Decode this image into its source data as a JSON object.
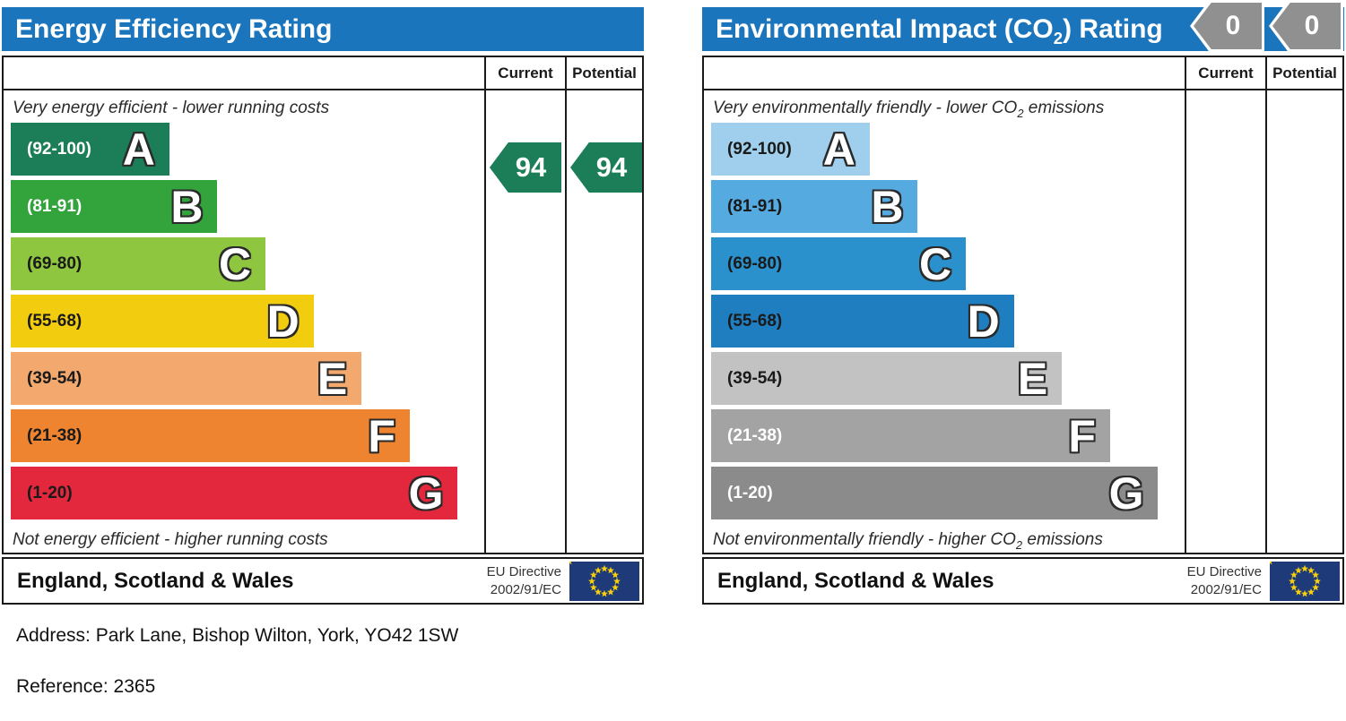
{
  "charts": [
    {
      "id": "energy",
      "title": {
        "pre": "Energy Efficiency Rating",
        "sub": "",
        "post": ""
      },
      "columns": {
        "current": "Current",
        "potential": "Potential"
      },
      "captions": {
        "top": {
          "pre": "Very energy efficient - lower running costs",
          "sub": "",
          "post": ""
        },
        "bottom": {
          "pre": "Not energy efficient - higher running costs",
          "sub": "",
          "post": ""
        }
      },
      "bands": [
        {
          "range": "(92-100)",
          "letter": "A",
          "color": "#1c7e58",
          "text_color": "#ffffff",
          "width_pct": 33
        },
        {
          "range": "(81-91)",
          "letter": "B",
          "color": "#33a43c",
          "text_color": "#ffffff",
          "width_pct": 43
        },
        {
          "range": "(69-80)",
          "letter": "C",
          "color": "#8ec63f",
          "text_color": "#1a1a1a",
          "width_pct": 53
        },
        {
          "range": "(55-68)",
          "letter": "D",
          "color": "#f2cc0f",
          "text_color": "#1a1a1a",
          "width_pct": 63
        },
        {
          "range": "(39-54)",
          "letter": "E",
          "color": "#f3a96e",
          "text_color": "#1a1a1a",
          "width_pct": 73
        },
        {
          "range": "(21-38)",
          "letter": "F",
          "color": "#ee8430",
          "text_color": "#1a1a1a",
          "width_pct": 83
        },
        {
          "range": "(1-20)",
          "letter": "G",
          "color": "#e3273d",
          "text_color": "#1a1a1a",
          "width_pct": 93
        }
      ],
      "ratings": {
        "current": "94",
        "potential": "94",
        "arrow_color": "#1c7e58",
        "placement": "band-a"
      },
      "footer": {
        "region": "England, Scotland & Wales",
        "directive1": "EU Directive",
        "directive2": "2002/91/EC"
      }
    },
    {
      "id": "environmental",
      "title": {
        "pre": "Environmental Impact (CO",
        "sub": "2",
        "post": ") Rating"
      },
      "columns": {
        "current": "Current",
        "potential": "Potential"
      },
      "captions": {
        "top": {
          "pre": "Very environmentally friendly - lower CO",
          "sub": "2",
          "post": " emissions"
        },
        "bottom": {
          "pre": "Not environmentally friendly - higher CO",
          "sub": "2",
          "post": " emissions"
        }
      },
      "bands": [
        {
          "range": "(92-100)",
          "letter": "A",
          "color": "#9fcfed",
          "text_color": "#1a1a1a",
          "width_pct": 33
        },
        {
          "range": "(81-91)",
          "letter": "B",
          "color": "#55aadf",
          "text_color": "#1a1a1a",
          "width_pct": 43
        },
        {
          "range": "(69-80)",
          "letter": "C",
          "color": "#2b91cc",
          "text_color": "#1a1a1a",
          "width_pct": 53
        },
        {
          "range": "(55-68)",
          "letter": "D",
          "color": "#1f7ec0",
          "text_color": "#1a1a1a",
          "width_pct": 63
        },
        {
          "range": "(39-54)",
          "letter": "E",
          "color": "#c2c2c2",
          "text_color": "#1a1a1a",
          "width_pct": 73
        },
        {
          "range": "(21-38)",
          "letter": "F",
          "color": "#a3a3a3",
          "text_color": "#ffffff",
          "width_pct": 83
        },
        {
          "range": "(1-20)",
          "letter": "G",
          "color": "#8b8b8b",
          "text_color": "#ffffff",
          "width_pct": 93
        }
      ],
      "ratings": {
        "current": "0",
        "potential": "0",
        "arrow_color": "#909090",
        "placement": "banner-overlay"
      },
      "footer": {
        "region": "England, Scotland & Wales",
        "directive1": "EU Directive",
        "directive2": "2002/91/EC"
      }
    }
  ],
  "notes": {
    "address": "Address: Park Lane, Bishop Wilton, York, YO42 1SW",
    "reference": "Reference: 2365"
  },
  "colors": {
    "banner_blue": "#1a75bc",
    "eu_flag_blue": "#1e3a78",
    "eu_star_gold": "#f7cf0c"
  },
  "chart_data": [
    {
      "type": "bar",
      "title": "Energy Efficiency Rating",
      "categories": [
        "A (92-100)",
        "B (81-91)",
        "C (69-80)",
        "D (55-68)",
        "E (39-54)",
        "F (21-38)",
        "G (1-20)"
      ],
      "values": [
        33,
        43,
        53,
        63,
        73,
        83,
        93
      ],
      "series": [
        {
          "name": "Current rating",
          "values": [
            94
          ]
        },
        {
          "name": "Potential rating",
          "values": [
            94
          ]
        }
      ],
      "xlabel": "",
      "ylabel": "",
      "legend_position": "columns-right",
      "annotations": [
        "Very energy efficient - lower running costs",
        "Not energy efficient - higher running costs",
        "England, Scotland & Wales",
        "EU Directive 2002/91/EC"
      ]
    },
    {
      "type": "bar",
      "title": "Environmental Impact (CO2) Rating",
      "categories": [
        "A (92-100)",
        "B (81-91)",
        "C (69-80)",
        "D (55-68)",
        "E (39-54)",
        "F (21-38)",
        "G (1-20)"
      ],
      "values": [
        33,
        43,
        53,
        63,
        73,
        83,
        93
      ],
      "series": [
        {
          "name": "Current rating",
          "values": [
            0
          ]
        },
        {
          "name": "Potential rating",
          "values": [
            0
          ]
        }
      ],
      "xlabel": "",
      "ylabel": "",
      "legend_position": "columns-right",
      "annotations": [
        "Very environmentally friendly - lower CO2 emissions",
        "Not environmentally friendly - higher CO2 emissions",
        "England, Scotland & Wales",
        "EU Directive 2002/91/EC"
      ]
    }
  ]
}
